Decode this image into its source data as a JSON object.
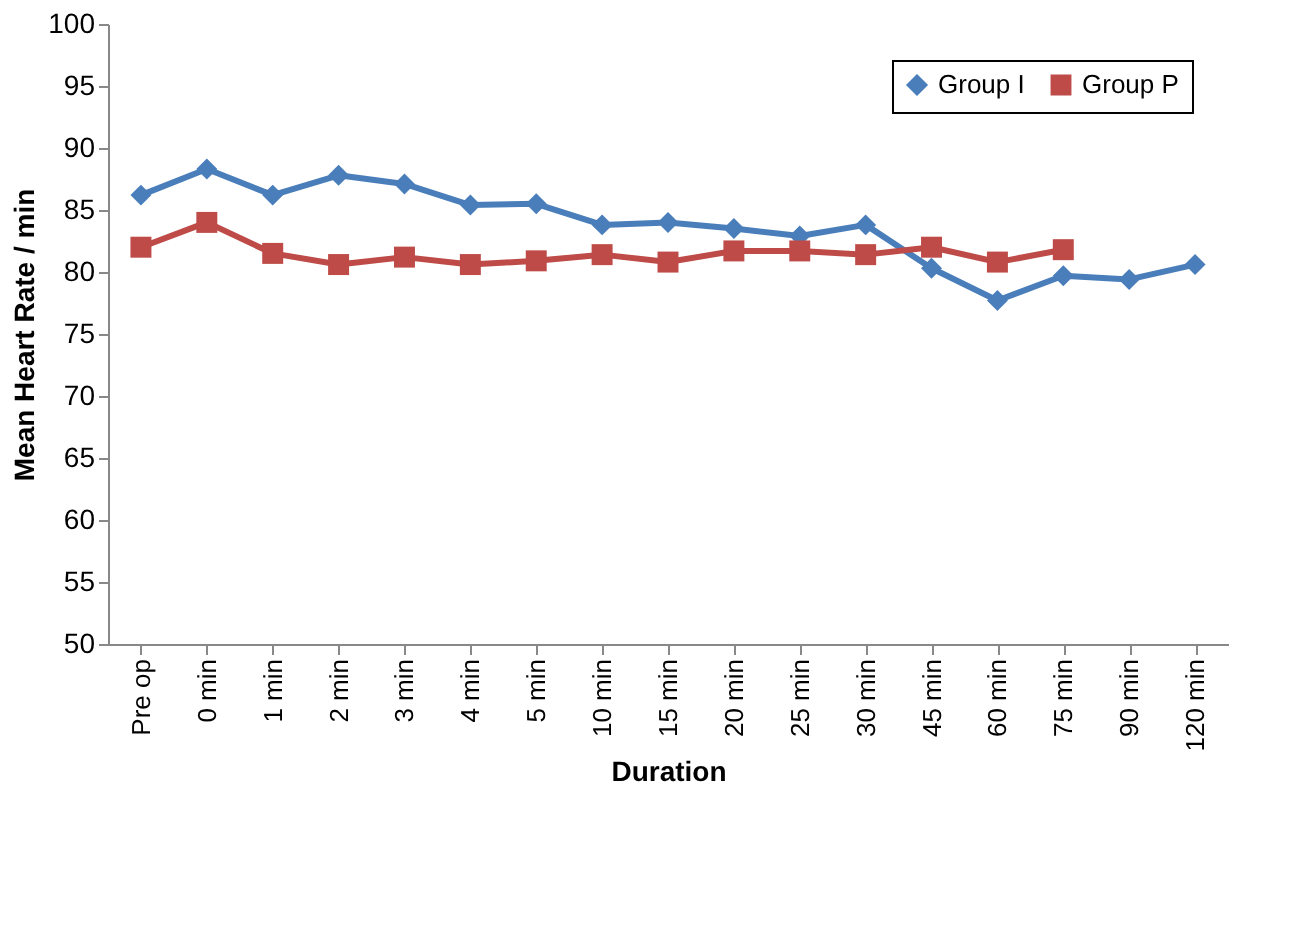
{
  "chart_data": {
    "type": "line",
    "xlabel": "Duration",
    "ylabel": "Mean  Heart  Rate / min",
    "categories": [
      "Pre op",
      "0 min",
      "1 min",
      "2 min",
      "3 min",
      "4 min",
      "5 min",
      "10 min",
      "15 min",
      "20 min",
      "25 min",
      "30 min",
      "45 min",
      "60 min",
      "75 min",
      "90 min",
      "120 min"
    ],
    "series": [
      {
        "name": "Group I",
        "color": "#4a7ebb",
        "marker": "diamond",
        "values": [
          86.2,
          88.3,
          86.2,
          87.8,
          87.1,
          85.4,
          85.5,
          83.8,
          84.0,
          83.5,
          82.9,
          83.8,
          80.3,
          77.7,
          79.7,
          79.4,
          80.6
        ]
      },
      {
        "name": "Group P",
        "color": "#be4b48",
        "marker": "square",
        "values": [
          82.0,
          84.0,
          81.5,
          80.6,
          81.2,
          80.6,
          80.9,
          81.4,
          80.8,
          81.7,
          81.7,
          81.4,
          82.0,
          80.8,
          81.8,
          null,
          null
        ]
      }
    ],
    "ylim": [
      50,
      100
    ],
    "yticks": [
      50,
      55,
      60,
      65,
      70,
      75,
      80,
      85,
      90,
      95,
      100
    ],
    "grid": false,
    "legend": "top right"
  }
}
